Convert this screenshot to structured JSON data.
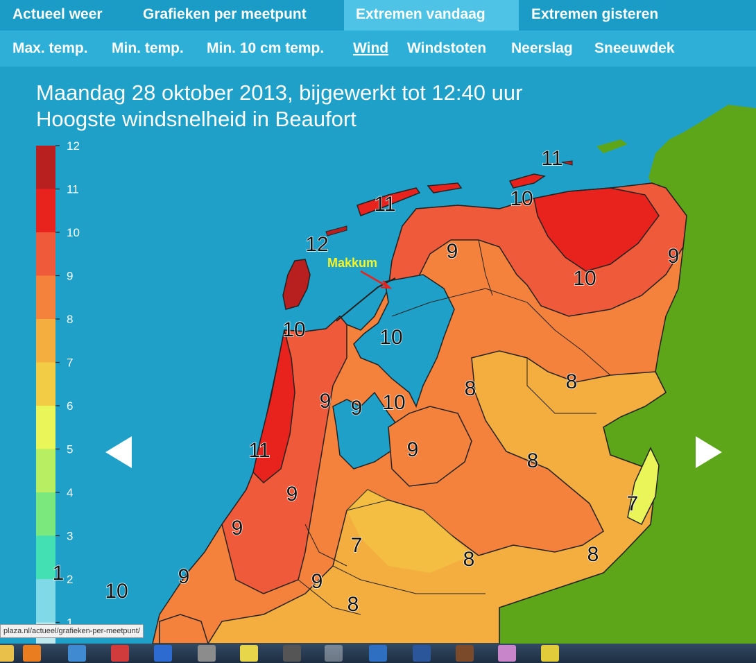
{
  "nav": {
    "tabs": [
      {
        "label": "Actueel weer"
      },
      {
        "label": "Grafieken per meetpunt"
      },
      {
        "label": "Extremen vandaag"
      },
      {
        "label": "Extremen gisteren"
      }
    ],
    "active_tab": "Extremen vandaag"
  },
  "subnav": {
    "items": [
      {
        "label": "Max. temp."
      },
      {
        "label": "Min. temp."
      },
      {
        "label": "Min. 10 cm temp."
      },
      {
        "label": "Wind"
      },
      {
        "label": "Windstoten"
      },
      {
        "label": "Neerslag"
      },
      {
        "label": "Sneeuwdek"
      }
    ],
    "active_item": "Wind"
  },
  "map": {
    "title_line1": "Maandag 28 oktober 2013, bijgewerkt tot 12:40 uur",
    "title_line2": "Hoogste windsnelheid in Beaufort",
    "annotation": "Makkum",
    "legend": {
      "ticks": [
        "12",
        "11",
        "10",
        "9",
        "8",
        "7",
        "6",
        "5",
        "4",
        "3",
        "2",
        "1"
      ],
      "colors": [
        "#b81f1f",
        "#e8231e",
        "#ef5a3a",
        "#f5823c",
        "#f4ae3f",
        "#f3cc46",
        "#eaf55a",
        "#b8ee62",
        "#7ae87d",
        "#43e0b4",
        "#7fd9e6",
        "#bde8ee"
      ]
    },
    "contour_labels": [
      "11",
      "11",
      "12",
      "10",
      "9",
      "10",
      "9",
      "10",
      "10",
      "8",
      "9",
      "9",
      "10",
      "8",
      "11",
      "9",
      "8",
      "9",
      "7",
      "7",
      "9",
      "9",
      "8",
      "8",
      "9",
      "10",
      "8",
      "1"
    ],
    "region_colors": {
      "sea": "#1fa0c8",
      "germany": "#5da519",
      "bft12": "#b81f1f",
      "bft11": "#e8231e",
      "bft10": "#ef5a3a",
      "bft9": "#f5823c",
      "bft8": "#f4ae3f",
      "bft7": "#eaf55a"
    }
  },
  "prev_icon": "left-arrow-icon",
  "next_icon": "right-arrow-icon",
  "status_url": "plaza.nl/actueel/grafieken-per-meetpunt/",
  "taskbar": {
    "icons": [
      "folder-icon",
      "media-player-icon",
      "globe-icon",
      "redirect-icon",
      "network-icon",
      "speaker-icon",
      "nap-icon",
      "film-icon",
      "internet-explorer-icon",
      "outlook-icon",
      "word-icon",
      "pin-icon",
      "paint-icon",
      "gear-icon"
    ]
  }
}
